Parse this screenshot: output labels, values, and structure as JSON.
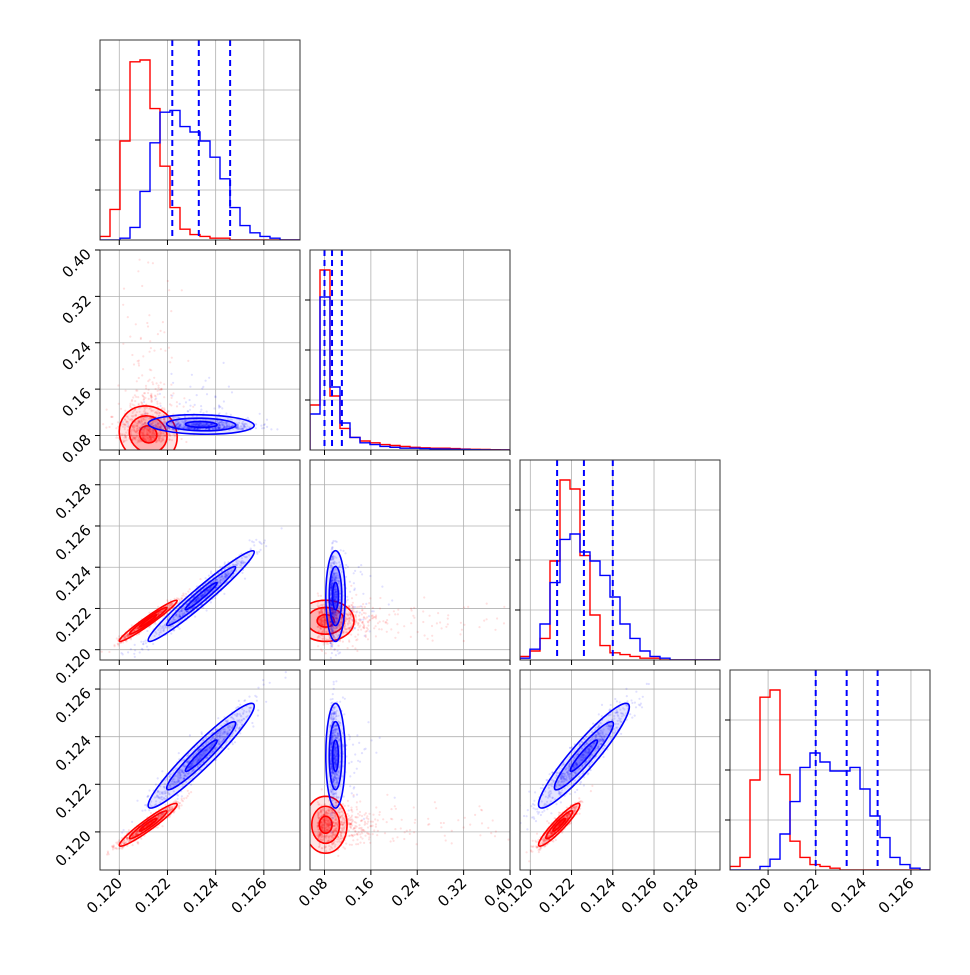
{
  "colors": {
    "series_red": "#ff0000",
    "series_blue": "#0000ff",
    "grid": "#b0b0b0"
  },
  "chart_data": {
    "type": "corner",
    "description_of_layout": "4x4 lower-triangular corner plot; diagonal 1D histograms with dashed blue quantile lines; off-diagonal 2D scatter with contours",
    "grid": true,
    "parameters": [
      {
        "ticks": [
          0.12,
          0.122,
          0.124,
          0.126
        ],
        "tick_labels": [
          "0.120",
          "0.122",
          "0.124",
          "0.126"
        ],
        "range": [
          0.1192,
          0.1275
        ]
      },
      {
        "ticks": [
          0.08,
          0.16,
          0.24,
          0.32,
          0.4
        ],
        "tick_labels": [
          "0.08",
          "0.16",
          "0.24",
          "0.32",
          "0.40"
        ],
        "range": [
          0.055,
          0.4
        ]
      },
      {
        "ticks": [
          0.12,
          0.122,
          0.124,
          0.126,
          0.128
        ],
        "tick_labels": [
          "0.120",
          "0.122",
          "0.124",
          "0.126",
          "0.128"
        ],
        "range": [
          0.1195,
          0.1292
        ]
      },
      {
        "ticks": [
          0.12,
          0.122,
          0.124,
          0.126
        ],
        "tick_labels": [
          "0.120",
          "0.122",
          "0.124",
          "0.126"
        ],
        "range": [
          0.1184,
          0.1268
        ]
      }
    ],
    "series": [
      {
        "color": "#ff0000",
        "means": [
          0.1212,
          0.078,
          0.1214,
          0.1203
        ],
        "sds": [
          0.0006,
          0.035,
          0.0005,
          0.00045
        ],
        "histograms": [
          [
            0.02,
            0.17,
            0.55,
            0.99,
            1.0,
            0.73,
            0.41,
            0.18,
            0.06,
            0.03,
            0.02,
            0.01,
            0.01,
            0.0,
            0.0,
            0.0,
            0.0,
            0.0,
            0.0,
            0.0
          ],
          [
            0.25,
            1.0,
            0.3,
            0.12,
            0.07,
            0.05,
            0.04,
            0.03,
            0.025,
            0.02,
            0.015,
            0.012,
            0.01,
            0.01,
            0.008,
            0.005,
            0.004,
            0.003,
            0.002,
            0.001
          ],
          [
            0.02,
            0.05,
            0.12,
            0.55,
            1.0,
            0.95,
            0.58,
            0.25,
            0.08,
            0.04,
            0.03,
            0.02,
            0.01,
            0.01,
            0.0,
            0.0,
            0.0,
            0.0,
            0.0,
            0.0
          ],
          [
            0.02,
            0.07,
            0.5,
            0.96,
            1.0,
            0.53,
            0.16,
            0.07,
            0.03,
            0.02,
            0.01,
            0.0,
            0.0,
            0.0,
            0.0,
            0.0,
            0.0,
            0.0,
            0.0,
            0.0
          ]
        ]
      },
      {
        "color": "#0000ff",
        "means": [
          0.1234,
          0.095,
          0.1226,
          0.1232
        ],
        "sds": [
          0.0011,
          0.012,
          0.0011,
          0.0011
        ],
        "quantiles": [
          [
            0.1222,
            0.1233,
            0.1246
          ],
          [
            0.08,
            0.093,
            0.11
          ],
          [
            0.1213,
            0.1226,
            0.124
          ],
          [
            0.122,
            0.1233,
            0.1246
          ]
        ],
        "histograms": [
          [
            0.0,
            0.0,
            0.01,
            0.07,
            0.27,
            0.54,
            0.71,
            0.72,
            0.63,
            0.6,
            0.55,
            0.46,
            0.34,
            0.18,
            0.08,
            0.04,
            0.02,
            0.01,
            0.0,
            0.0
          ],
          [
            0.2,
            0.85,
            0.35,
            0.15,
            0.07,
            0.04,
            0.03,
            0.02,
            0.015,
            0.01,
            0.01,
            0.008,
            0.006,
            0.005,
            0.004,
            0.003,
            0.002,
            0.001,
            0.0,
            0.0
          ],
          [
            0.01,
            0.06,
            0.2,
            0.43,
            0.67,
            0.7,
            0.6,
            0.55,
            0.47,
            0.35,
            0.2,
            0.12,
            0.05,
            0.02,
            0.01,
            0.0,
            0.0,
            0.0,
            0.0,
            0.0
          ],
          [
            0.0,
            0.0,
            0.0,
            0.02,
            0.06,
            0.2,
            0.38,
            0.57,
            0.65,
            0.6,
            0.55,
            0.55,
            0.57,
            0.45,
            0.3,
            0.18,
            0.07,
            0.03,
            0.01,
            0.0
          ]
        ]
      }
    ],
    "correlations": {
      "1-0": -0.1,
      "2-0": 0.97,
      "2-1": 0.0,
      "3-0": 0.95,
      "3-1": 0.0,
      "3-2": 0.93
    }
  }
}
